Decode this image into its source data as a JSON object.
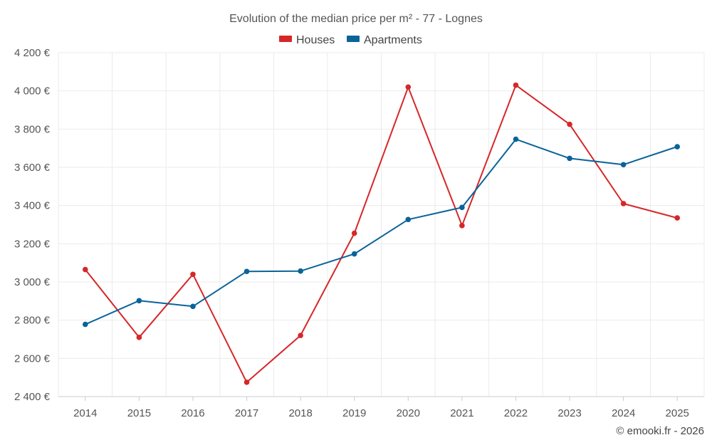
{
  "chart_data": {
    "type": "line",
    "title": "Evolution of the median price per m² - 77 - Lognes",
    "categories": [
      "2014",
      "2015",
      "2016",
      "2017",
      "2018",
      "2019",
      "2020",
      "2021",
      "2022",
      "2023",
      "2024",
      "2025"
    ],
    "series": [
      {
        "name": "Houses",
        "color": "#d62728",
        "values": [
          3065,
          2710,
          3040,
          2475,
          2720,
          3255,
          4020,
          3295,
          4030,
          3825,
          3410,
          3335
        ]
      },
      {
        "name": "Apartments",
        "color": "#0a6399",
        "values": [
          2778,
          2902,
          2872,
          3055,
          3057,
          3147,
          3327,
          3390,
          3747,
          3647,
          3614,
          3708
        ]
      }
    ],
    "ylim": [
      2400,
      4200
    ],
    "yticks": [
      2400,
      2600,
      2800,
      3000,
      3200,
      3400,
      3600,
      3800,
      4000,
      4200
    ],
    "ytick_labels": [
      "2 400 €",
      "2 600 €",
      "2 800 €",
      "3 000 €",
      "3 200 €",
      "3 400 €",
      "3 600 €",
      "3 800 €",
      "4 000 €",
      "4 200 €"
    ],
    "xlabel": "",
    "ylabel": "",
    "grid": true,
    "legend_position": "top-center"
  },
  "credit": "© emooki.fr - 2026"
}
